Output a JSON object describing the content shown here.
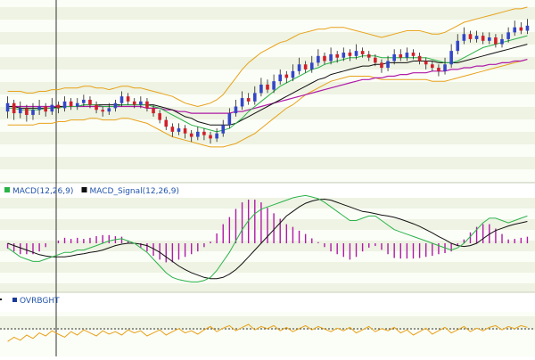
{
  "chart_data": [
    {
      "type": "candlestick",
      "panel": "price",
      "colors": {
        "up": "#3346c8",
        "down": "#d0202a",
        "wick": "#222222",
        "bollinger": "#e8a21a",
        "ma_fast": "#2bb34a",
        "ma_mid": "#111111",
        "ma_slow": "#b01aa8"
      },
      "ylim": [
        0,
        100
      ],
      "candles": [
        {
          "o": 38,
          "c": 43,
          "h": 47,
          "l": 34
        },
        {
          "o": 43,
          "c": 37,
          "h": 45,
          "l": 33
        },
        {
          "o": 37,
          "c": 40,
          "h": 44,
          "l": 34
        },
        {
          "o": 40,
          "c": 36,
          "h": 42,
          "l": 32
        },
        {
          "o": 36,
          "c": 39,
          "h": 43,
          "l": 33
        },
        {
          "o": 39,
          "c": 41,
          "h": 45,
          "l": 36
        },
        {
          "o": 41,
          "c": 38,
          "h": 43,
          "l": 35
        },
        {
          "o": 38,
          "c": 42,
          "h": 46,
          "l": 36
        },
        {
          "o": 42,
          "c": 40,
          "h": 44,
          "l": 37
        },
        {
          "o": 40,
          "c": 44,
          "h": 47,
          "l": 38
        },
        {
          "o": 44,
          "c": 41,
          "h": 46,
          "l": 39
        },
        {
          "o": 41,
          "c": 43,
          "h": 46,
          "l": 39
        },
        {
          "o": 43,
          "c": 45,
          "h": 48,
          "l": 41
        },
        {
          "o": 45,
          "c": 42,
          "h": 47,
          "l": 40
        },
        {
          "o": 42,
          "c": 39,
          "h": 44,
          "l": 37
        },
        {
          "o": 39,
          "c": 38,
          "h": 41,
          "l": 35
        },
        {
          "o": 38,
          "c": 40,
          "h": 43,
          "l": 36
        },
        {
          "o": 40,
          "c": 43,
          "h": 45,
          "l": 38
        },
        {
          "o": 43,
          "c": 47,
          "h": 50,
          "l": 41
        },
        {
          "o": 47,
          "c": 44,
          "h": 49,
          "l": 42
        },
        {
          "o": 44,
          "c": 42,
          "h": 46,
          "l": 40
        },
        {
          "o": 42,
          "c": 44,
          "h": 47,
          "l": 40
        },
        {
          "o": 44,
          "c": 40,
          "h": 46,
          "l": 38
        },
        {
          "o": 40,
          "c": 37,
          "h": 42,
          "l": 35
        },
        {
          "o": 37,
          "c": 33,
          "h": 39,
          "l": 31
        },
        {
          "o": 33,
          "c": 29,
          "h": 35,
          "l": 27
        },
        {
          "o": 29,
          "c": 26,
          "h": 31,
          "l": 23
        },
        {
          "o": 26,
          "c": 28,
          "h": 31,
          "l": 24
        },
        {
          "o": 28,
          "c": 25,
          "h": 30,
          "l": 22
        },
        {
          "o": 25,
          "c": 23,
          "h": 27,
          "l": 20
        },
        {
          "o": 23,
          "c": 26,
          "h": 29,
          "l": 21
        },
        {
          "o": 26,
          "c": 24,
          "h": 28,
          "l": 21
        },
        {
          "o": 24,
          "c": 22,
          "h": 26,
          "l": 19
        },
        {
          "o": 22,
          "c": 25,
          "h": 28,
          "l": 20
        },
        {
          "o": 25,
          "c": 30,
          "h": 33,
          "l": 23
        },
        {
          "o": 30,
          "c": 37,
          "h": 40,
          "l": 28
        },
        {
          "o": 37,
          "c": 41,
          "h": 45,
          "l": 35
        },
        {
          "o": 41,
          "c": 46,
          "h": 50,
          "l": 39
        },
        {
          "o": 46,
          "c": 44,
          "h": 49,
          "l": 42
        },
        {
          "o": 44,
          "c": 49,
          "h": 53,
          "l": 42
        },
        {
          "o": 49,
          "c": 54,
          "h": 58,
          "l": 47
        },
        {
          "o": 54,
          "c": 51,
          "h": 57,
          "l": 49
        },
        {
          "o": 51,
          "c": 56,
          "h": 60,
          "l": 49
        },
        {
          "o": 56,
          "c": 60,
          "h": 63,
          "l": 54
        },
        {
          "o": 60,
          "c": 58,
          "h": 62,
          "l": 55
        },
        {
          "o": 58,
          "c": 62,
          "h": 66,
          "l": 56
        },
        {
          "o": 62,
          "c": 66,
          "h": 70,
          "l": 60
        },
        {
          "o": 66,
          "c": 63,
          "h": 68,
          "l": 61
        },
        {
          "o": 63,
          "c": 67,
          "h": 71,
          "l": 61
        },
        {
          "o": 67,
          "c": 71,
          "h": 75,
          "l": 65
        },
        {
          "o": 71,
          "c": 68,
          "h": 73,
          "l": 66
        },
        {
          "o": 68,
          "c": 72,
          "h": 76,
          "l": 66
        },
        {
          "o": 72,
          "c": 70,
          "h": 74,
          "l": 67
        },
        {
          "o": 70,
          "c": 73,
          "h": 76,
          "l": 68
        },
        {
          "o": 73,
          "c": 71,
          "h": 75,
          "l": 68
        },
        {
          "o": 71,
          "c": 74,
          "h": 78,
          "l": 69
        },
        {
          "o": 74,
          "c": 72,
          "h": 76,
          "l": 70
        },
        {
          "o": 72,
          "c": 70,
          "h": 74,
          "l": 68
        },
        {
          "o": 70,
          "c": 67,
          "h": 72,
          "l": 65
        },
        {
          "o": 67,
          "c": 64,
          "h": 69,
          "l": 61
        },
        {
          "o": 64,
          "c": 68,
          "h": 71,
          "l": 62
        },
        {
          "o": 68,
          "c": 72,
          "h": 75,
          "l": 66
        },
        {
          "o": 72,
          "c": 70,
          "h": 75,
          "l": 68
        },
        {
          "o": 70,
          "c": 73,
          "h": 76,
          "l": 68
        },
        {
          "o": 73,
          "c": 71,
          "h": 75,
          "l": 69
        },
        {
          "o": 71,
          "c": 68,
          "h": 73,
          "l": 66
        },
        {
          "o": 68,
          "c": 66,
          "h": 70,
          "l": 63
        },
        {
          "o": 66,
          "c": 64,
          "h": 68,
          "l": 62
        },
        {
          "o": 64,
          "c": 62,
          "h": 66,
          "l": 59
        },
        {
          "o": 62,
          "c": 66,
          "h": 70,
          "l": 60
        },
        {
          "o": 66,
          "c": 74,
          "h": 78,
          "l": 64
        },
        {
          "o": 74,
          "c": 80,
          "h": 84,
          "l": 72
        },
        {
          "o": 80,
          "c": 84,
          "h": 88,
          "l": 78
        },
        {
          "o": 84,
          "c": 81,
          "h": 86,
          "l": 79
        },
        {
          "o": 81,
          "c": 83,
          "h": 86,
          "l": 79
        },
        {
          "o": 83,
          "c": 80,
          "h": 85,
          "l": 78
        },
        {
          "o": 80,
          "c": 82,
          "h": 85,
          "l": 78
        },
        {
          "o": 82,
          "c": 78,
          "h": 84,
          "l": 76
        },
        {
          "o": 78,
          "c": 81,
          "h": 84,
          "l": 76
        },
        {
          "o": 81,
          "c": 85,
          "h": 88,
          "l": 79
        },
        {
          "o": 85,
          "c": 88,
          "h": 92,
          "l": 83
        },
        {
          "o": 88,
          "c": 86,
          "h": 91,
          "l": 84
        },
        {
          "o": 86,
          "c": 89,
          "h": 93,
          "l": 84
        }
      ],
      "bb_upper": [
        50,
        50,
        50,
        49,
        49,
        50,
        50,
        51,
        51,
        52,
        52,
        52,
        53,
        53,
        52,
        52,
        51,
        52,
        53,
        53,
        52,
        52,
        51,
        50,
        49,
        48,
        47,
        45,
        43,
        42,
        41,
        42,
        43,
        45,
        48,
        53,
        58,
        63,
        67,
        70,
        73,
        75,
        77,
        79,
        80,
        82,
        84,
        85,
        86,
        87,
        87,
        88,
        88,
        88,
        87,
        86,
        85,
        84,
        83,
        82,
        83,
        84,
        85,
        86,
        86,
        86,
        85,
        84,
        84,
        85,
        87,
        89,
        91,
        92,
        93,
        94,
        95,
        96,
        97,
        98,
        99,
        99,
        100
      ],
      "bb_lower": [
        30,
        30,
        30,
        30,
        30,
        31,
        31,
        31,
        32,
        32,
        33,
        33,
        33,
        34,
        34,
        33,
        33,
        33,
        34,
        34,
        33,
        32,
        31,
        29,
        27,
        25,
        23,
        22,
        21,
        20,
        19,
        18,
        17,
        17,
        17,
        18,
        19,
        21,
        23,
        25,
        28,
        31,
        34,
        37,
        40,
        42,
        45,
        48,
        50,
        52,
        54,
        56,
        57,
        58,
        59,
        59,
        59,
        59,
        58,
        57,
        57,
        57,
        57,
        57,
        57,
        57,
        57,
        56,
        56,
        56,
        57,
        58,
        59,
        60,
        61,
        62,
        63,
        64,
        65,
        66,
        67,
        68,
        69
      ],
      "ma_fast": [
        40,
        40,
        39,
        39,
        39,
        39,
        40,
        40,
        40,
        41,
        41,
        41,
        42,
        42,
        42,
        41,
        41,
        41,
        42,
        42,
        42,
        42,
        42,
        41,
        40,
        38,
        36,
        34,
        32,
        30,
        29,
        28,
        27,
        26,
        27,
        28,
        31,
        34,
        38,
        41,
        44,
        47,
        50,
        53,
        55,
        57,
        59,
        61,
        63,
        64,
        66,
        67,
        68,
        69,
        70,
        70,
        71,
        71,
        71,
        70,
        70,
        70,
        70,
        70,
        70,
        70,
        70,
        69,
        68,
        67,
        67,
        68,
        70,
        72,
        74,
        76,
        77,
        78,
        79,
        80,
        81,
        82,
        83
      ],
      "ma_mid": [
        41,
        41,
        40,
        40,
        40,
        40,
        40,
        40,
        41,
        41,
        41,
        41,
        42,
        42,
        42,
        42,
        42,
        42,
        42,
        42,
        42,
        42,
        42,
        42,
        41,
        40,
        39,
        37,
        35,
        34,
        32,
        31,
        30,
        30,
        30,
        30,
        31,
        33,
        35,
        37,
        39,
        41,
        43,
        45,
        47,
        49,
        51,
        53,
        55,
        57,
        58,
        60,
        61,
        62,
        63,
        64,
        65,
        65,
        66,
        66,
        67,
        67,
        67,
        67,
        68,
        68,
        68,
        68,
        67,
        67,
        67,
        67,
        68,
        69,
        70,
        71,
        72,
        73,
        74,
        75,
        76,
        77,
        78
      ],
      "ma_slow": [
        41,
        41,
        41,
        41,
        41,
        41,
        41,
        41,
        41,
        41,
        41,
        41,
        41,
        41,
        41,
        41,
        41,
        41,
        41,
        41,
        41,
        41,
        40,
        40,
        40,
        39,
        39,
        38,
        38,
        37,
        37,
        37,
        37,
        37,
        37,
        37,
        38,
        38,
        39,
        40,
        41,
        42,
        43,
        44,
        45,
        46,
        47,
        48,
        49,
        50,
        51,
        52,
        53,
        54,
        55,
        56,
        57,
        57,
        58,
        58,
        59,
        59,
        60,
        60,
        61,
        61,
        61,
        62,
        62,
        62,
        63,
        63,
        64,
        64,
        65,
        65,
        66,
        66,
        67,
        67,
        68,
        68,
        69
      ]
    },
    {
      "type": "line+bar",
      "panel": "macd",
      "legend": [
        {
          "label": "MACD(12,26,9)",
          "color": "#2bb34a"
        },
        {
          "label": "MACD_Signal(12,26,9)",
          "color": "#111111"
        }
      ],
      "hist_color": "#b01aa8",
      "ylim": [
        -10,
        10
      ],
      "macd": [
        -1,
        -2,
        -3,
        -3.5,
        -4,
        -4,
        -3.5,
        -3,
        -2.5,
        -2,
        -2,
        -1.5,
        -1.5,
        -1,
        -0.5,
        0,
        0.5,
        0.8,
        1,
        0.5,
        0,
        -1,
        -2,
        -3.5,
        -5,
        -6.5,
        -7.5,
        -8,
        -8.3,
        -8.5,
        -8.5,
        -8.2,
        -7.5,
        -6,
        -4,
        -2,
        0.5,
        3,
        5,
        6.5,
        7.5,
        8,
        8.5,
        9,
        9.5,
        10,
        10.3,
        10.5,
        10.2,
        9.8,
        9,
        8,
        7,
        6,
        5,
        5,
        5.5,
        6,
        6,
        5,
        4,
        3,
        2.5,
        2,
        1.5,
        1,
        0.5,
        0,
        -0.5,
        -1,
        -1.5,
        -1,
        0,
        1.5,
        3,
        4.5,
        5.5,
        5.5,
        5,
        4.5,
        5,
        5.5,
        6
      ],
      "signal": [
        0,
        -0.5,
        -1,
        -1.5,
        -2,
        -2.5,
        -2.8,
        -3,
        -3,
        -3,
        -2.8,
        -2.5,
        -2.3,
        -2,
        -1.8,
        -1.5,
        -1,
        -0.5,
        -0.2,
        0,
        0,
        -0.2,
        -0.5,
        -1.2,
        -2,
        -3,
        -4,
        -5,
        -5.8,
        -6.5,
        -7,
        -7.5,
        -7.8,
        -7.8,
        -7.5,
        -6.8,
        -5.8,
        -4.5,
        -3,
        -1.5,
        0,
        1.5,
        3,
        4.5,
        6,
        7,
        8,
        8.8,
        9.3,
        9.6,
        9.7,
        9.5,
        9,
        8.5,
        8,
        7.5,
        7,
        6.8,
        6.5,
        6.2,
        6,
        5.7,
        5.3,
        4.8,
        4.3,
        3.7,
        3,
        2.3,
        1.5,
        0.8,
        0,
        -0.5,
        -0.7,
        -0.5,
        0,
        1,
        2,
        2.8,
        3.3,
        3.8,
        4.2,
        4.5,
        4.8
      ]
    },
    {
      "type": "line",
      "panel": "oscillator",
      "legend": [
        {
          "label": "OVRBGHT",
          "color": "#1a3a9a"
        }
      ],
      "color": "#e8a21a",
      "ylim": [
        0,
        100
      ],
      "values": [
        35,
        45,
        38,
        50,
        42,
        55,
        48,
        60,
        52,
        45,
        58,
        50,
        62,
        55,
        48,
        60,
        52,
        58,
        50,
        62,
        55,
        60,
        48,
        55,
        62,
        50,
        58,
        65,
        55,
        60,
        52,
        62,
        70,
        58,
        66,
        72,
        60,
        68,
        75,
        62,
        70,
        65,
        72,
        60,
        68,
        58,
        65,
        72,
        62,
        70,
        64,
        58,
        66,
        60,
        68,
        55,
        62,
        70,
        58,
        65,
        60,
        68,
        55,
        62,
        50,
        58,
        66,
        52,
        60,
        68,
        55,
        62,
        70,
        58,
        66,
        60,
        68,
        72,
        62,
        70,
        65,
        72,
        68
      ]
    }
  ]
}
